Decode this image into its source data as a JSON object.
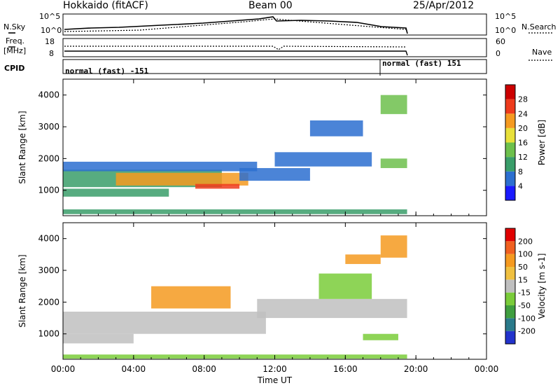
{
  "header": {
    "title_left": "Hokkaido (fitACF)",
    "title_center": "Beam 00",
    "title_right": "25/Apr/2012"
  },
  "top_panels": {
    "nsky_label": "N.Sky",
    "nsearch_label": "N.Search",
    "freq_label_1": "Freq.",
    "freq_label_2": "[MHz]",
    "nave_label": "Nave",
    "cpid_label": "CPID",
    "noise_left_ticks": [
      "10^5",
      "10^0"
    ],
    "noise_right_ticks": [
      "10^5",
      "10^0"
    ],
    "freq_ticks": [
      "18",
      "8"
    ],
    "nave_ticks": [
      "60",
      "0"
    ],
    "cpid_left": "normal (fast) -151",
    "cpid_right": "normal (fast) 151"
  },
  "chart_data": [
    {
      "type": "heatmap",
      "name": "power",
      "ylabel": "Slant Range [km]",
      "xlabel": "",
      "y_ticks": [
        "1000",
        "2000",
        "3000",
        "4000"
      ],
      "ylim": [
        200,
        4500
      ],
      "colorbar_label": "Power [dB]",
      "colorbar_ticks": [
        "4",
        "8",
        "12",
        "16",
        "20",
        "24",
        "28"
      ],
      "colorbar_colors": [
        "#1a1aff",
        "#2c6fd0",
        "#3a9e6a",
        "#6dc04c",
        "#e8e03a",
        "#f59a20",
        "#ee3b1c",
        "#cc0000"
      ],
      "regions": [
        {
          "t0": 0.0,
          "t1": 9.0,
          "r0": 1100,
          "r1": 1650,
          "level": 2
        },
        {
          "t0": 3.0,
          "t1": 10.5,
          "r0": 1150,
          "r1": 1550,
          "level": 5
        },
        {
          "t0": 7.5,
          "t1": 10.0,
          "r0": 1050,
          "r1": 1200,
          "level": 6
        },
        {
          "t0": 0.0,
          "t1": 11.0,
          "r0": 1600,
          "r1": 1900,
          "level": 1
        },
        {
          "t0": 0.0,
          "t1": 6.0,
          "r0": 800,
          "r1": 1050,
          "level": 2
        },
        {
          "t0": 10.0,
          "t1": 14.0,
          "r0": 1300,
          "r1": 1700,
          "level": 1
        },
        {
          "t0": 12.0,
          "t1": 17.5,
          "r0": 1750,
          "r1": 2200,
          "level": 1
        },
        {
          "t0": 14.0,
          "t1": 17.0,
          "r0": 2700,
          "r1": 3200,
          "level": 1
        },
        {
          "t0": 18.0,
          "t1": 19.5,
          "r0": 1700,
          "r1": 2000,
          "level": 3
        },
        {
          "t0": 18.0,
          "t1": 19.5,
          "r0": 3400,
          "r1": 4000,
          "level": 3
        },
        {
          "t0": 0.0,
          "t1": 19.5,
          "r0": 250,
          "r1": 400,
          "level": 2
        }
      ]
    },
    {
      "type": "heatmap",
      "name": "velocity",
      "ylabel": "Slant Range [km]",
      "xlabel": "Time UT",
      "x_ticks": [
        "00:00",
        "04:00",
        "08:00",
        "12:00",
        "16:00",
        "20:00",
        "00:00"
      ],
      "y_ticks": [
        "1000",
        "2000",
        "3000",
        "4000"
      ],
      "ylim": [
        200,
        4500
      ],
      "colorbar_label": "Velocity [m s-1]",
      "colorbar_ticks": [
        "200",
        "100",
        "50",
        "15",
        "-15",
        "-50",
        "-100",
        "-200"
      ],
      "colorbar_colors": [
        "#2233cc",
        "#2a7a8a",
        "#3f9e3f",
        "#7acc3a",
        "#bfbfbf",
        "#f0c040",
        "#f59a20",
        "#f06020",
        "#e00000"
      ],
      "regions": [
        {
          "t0": 0.0,
          "t1": 11.5,
          "r0": 1000,
          "r1": 1700,
          "level": 4
        },
        {
          "t0": 0.0,
          "t1": 4.0,
          "r0": 700,
          "r1": 1000,
          "level": 4
        },
        {
          "t0": 11.0,
          "t1": 19.5,
          "r0": 1500,
          "r1": 2100,
          "level": 4
        },
        {
          "t0": 5.0,
          "t1": 9.5,
          "r0": 1800,
          "r1": 2500,
          "level": 6
        },
        {
          "t0": 14.5,
          "t1": 17.5,
          "r0": 2100,
          "r1": 2900,
          "level": 3
        },
        {
          "t0": 16.0,
          "t1": 18.0,
          "r0": 3200,
          "r1": 3500,
          "level": 6
        },
        {
          "t0": 18.0,
          "t1": 19.5,
          "r0": 3400,
          "r1": 4100,
          "level": 6
        },
        {
          "t0": 17.0,
          "t1": 19.0,
          "r0": 800,
          "r1": 1000,
          "level": 3
        },
        {
          "t0": 0.0,
          "t1": 19.5,
          "r0": 220,
          "r1": 350,
          "level": 3
        }
      ]
    }
  ]
}
